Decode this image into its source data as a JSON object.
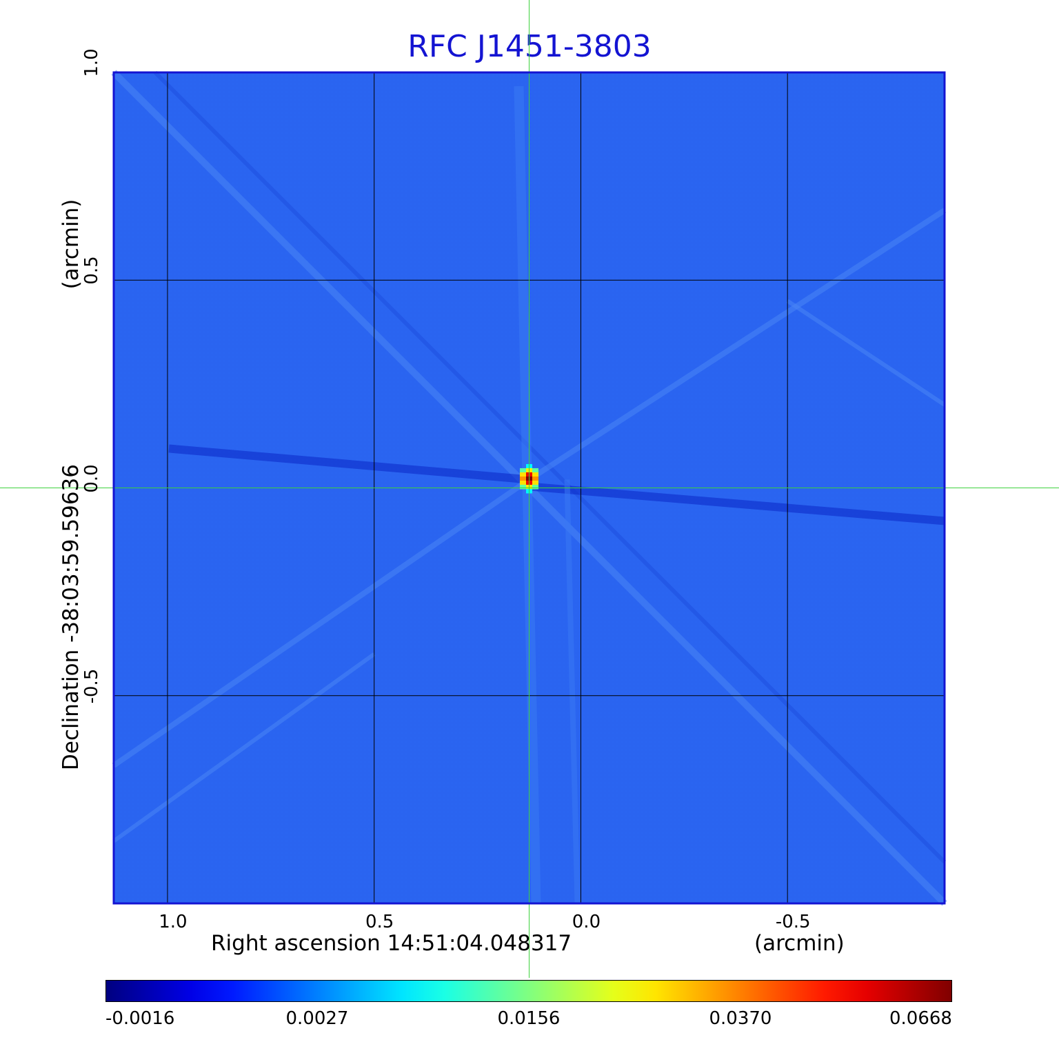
{
  "chart_data": {
    "type": "heatmap",
    "title": "RFC J1451-3803",
    "xlabel": "Right ascension  14:51:04.048317",
    "xunit": "(arcmin)",
    "ylabel": "Declination  -38:03:59.59636",
    "yunit": "(arcmin)",
    "x_ticks": [
      "1.0",
      "0.5",
      "0.0",
      "-0.5"
    ],
    "x_tick_values": [
      1.0,
      0.5,
      0.0,
      -0.5
    ],
    "y_ticks": [
      "1.0",
      "0.5",
      "0.0",
      "-0.5"
    ],
    "y_tick_values": [
      1.0,
      0.5,
      0.0,
      -0.5
    ],
    "xlim": [
      1.13,
      -0.88
    ],
    "ylim": [
      -1.0,
      1.0
    ],
    "grid": true,
    "colormap": "jet",
    "colorbar_ticks": [
      "-0.0016",
      "0.0027",
      "0.0156",
      "0.0370",
      "0.0668"
    ],
    "colorbar_range": [
      -0.0016,
      0.0668
    ],
    "peak": {
      "x": 0.125,
      "y": 0.02,
      "value": 0.0668
    },
    "crosshair": {
      "x": 0.125,
      "y": 0.0
    },
    "background_color": "#2a64f0",
    "frame_color": "#1414d2",
    "crosshair_color": "#3cd23c"
  }
}
